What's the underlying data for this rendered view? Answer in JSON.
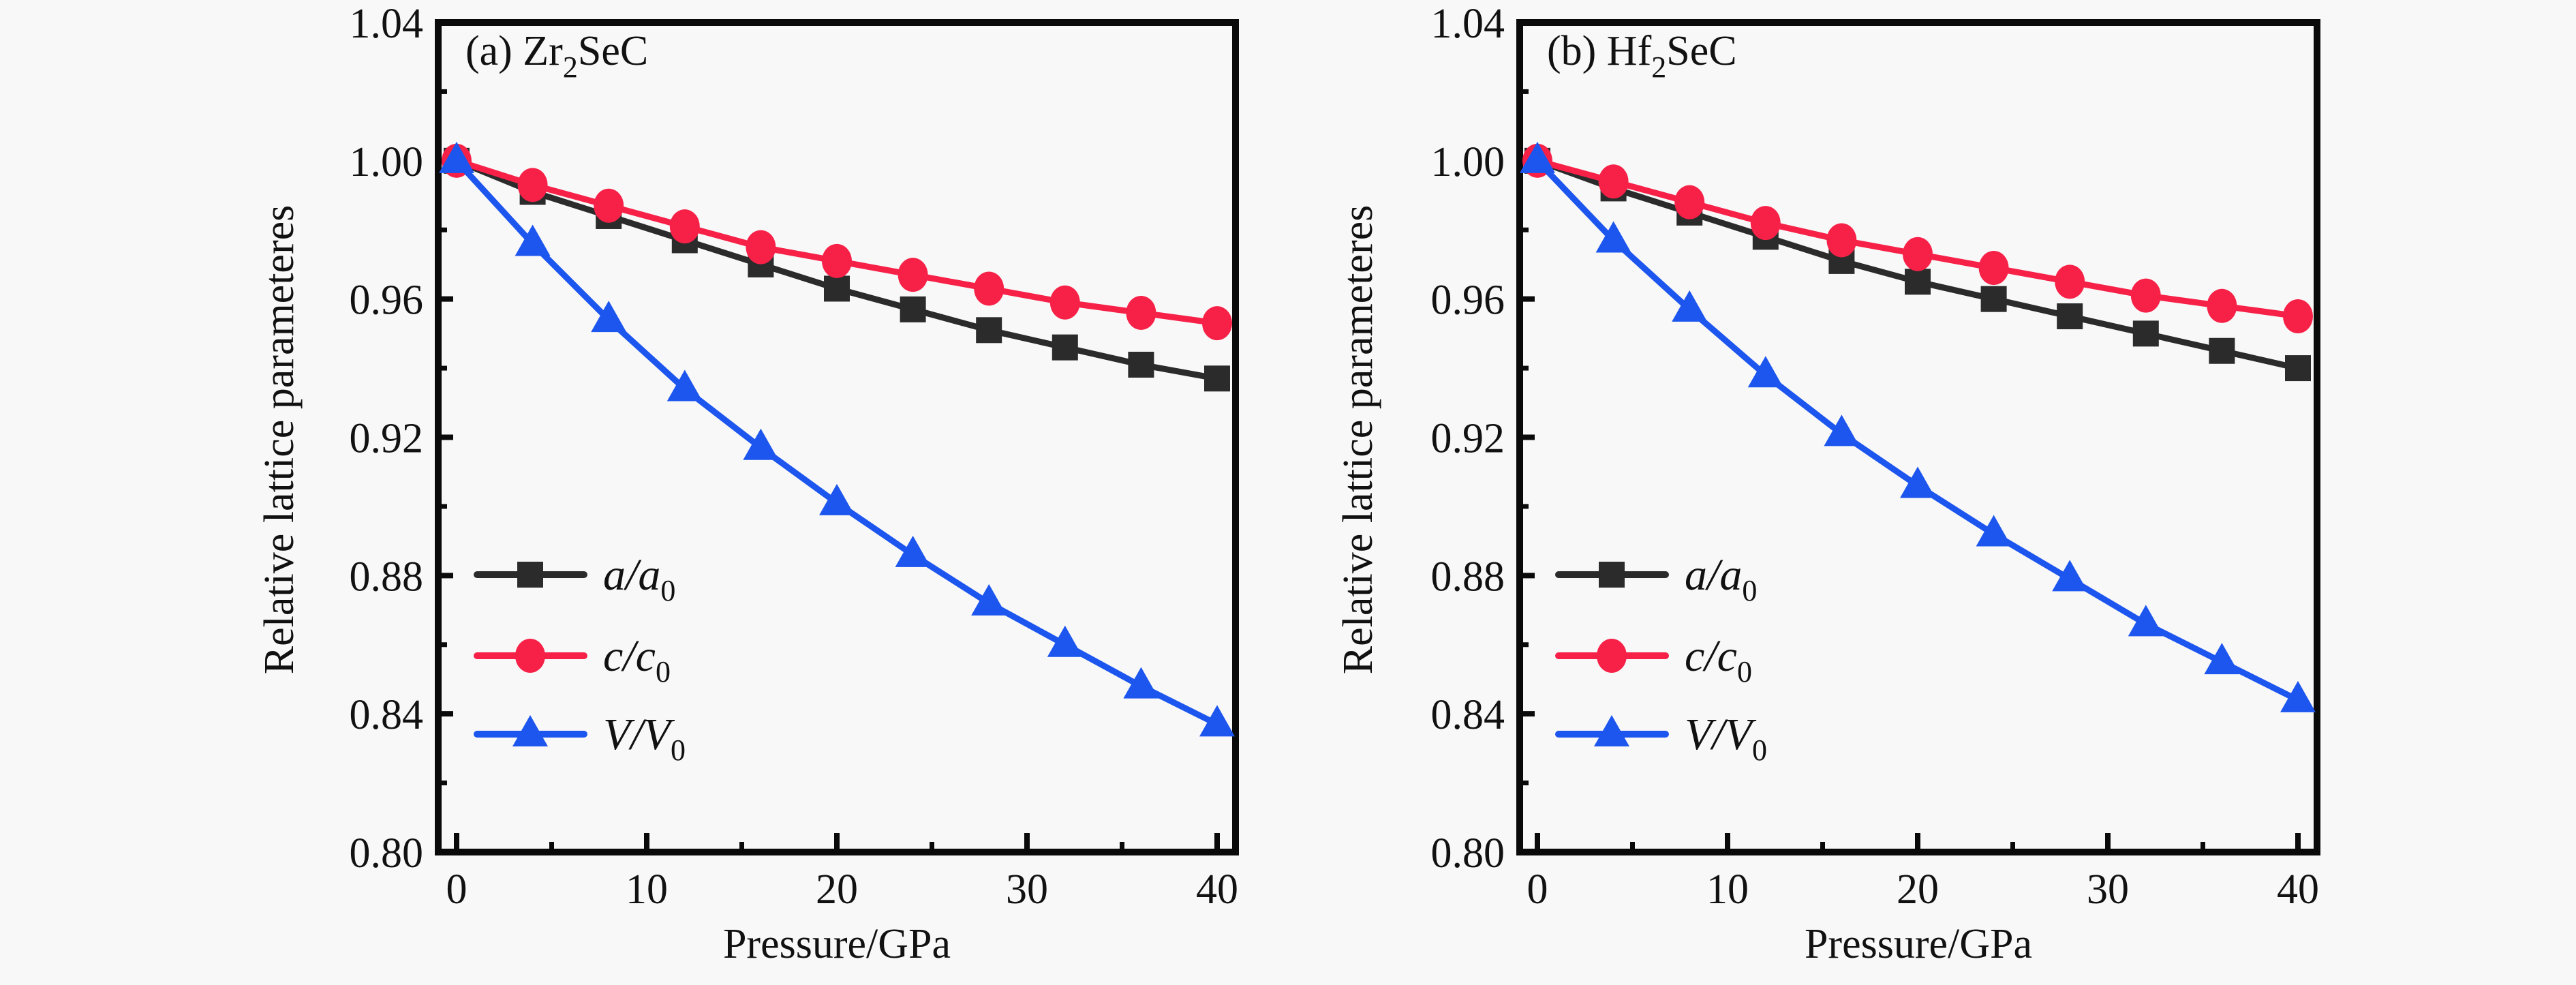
{
  "chart_data": [
    {
      "type": "line",
      "panel_label": "(a) Zr",
      "panel_label_sub": "2",
      "panel_label_tail": "SeC",
      "xlabel": "Pressure/GPa",
      "ylabel": "Relative lattice parameteres",
      "xlim": [
        -1,
        41
      ],
      "ylim": [
        0.8,
        1.04
      ],
      "xticks": [
        0,
        10,
        20,
        30,
        40
      ],
      "xtick_labels": [
        "0",
        "10",
        "20",
        "30",
        "40"
      ],
      "xminor_ticks": [
        5,
        15,
        25,
        35
      ],
      "yticks": [
        0.8,
        0.84,
        0.88,
        0.92,
        0.96,
        1.0,
        1.04
      ],
      "ytick_labels": [
        "0.80",
        "0.84",
        "0.88",
        "0.92",
        "0.96",
        "1.00",
        "1.04"
      ],
      "yminor_ticks": [
        0.82,
        0.86,
        0.9,
        0.94,
        0.98,
        1.02
      ],
      "grid": false,
      "legend_position": "lower-left",
      "x": [
        0,
        4,
        8,
        12,
        16,
        20,
        24,
        28,
        32,
        36,
        40
      ],
      "series": [
        {
          "name": "a/a0",
          "label_main": "a/a",
          "label_sub": "0",
          "marker": "square",
          "color": "#2b2b2b",
          "values": [
            1.0,
            0.991,
            0.984,
            0.977,
            0.97,
            0.963,
            0.957,
            0.951,
            0.946,
            0.941,
            0.937
          ]
        },
        {
          "name": "c/c0",
          "label_main": "c/c",
          "label_sub": "0",
          "marker": "circle",
          "color": "#f72148",
          "values": [
            1.0,
            0.993,
            0.987,
            0.981,
            0.975,
            0.971,
            0.967,
            0.963,
            0.959,
            0.956,
            0.953
          ]
        },
        {
          "name": "V/V0",
          "label_main": "V/V",
          "label_sub": "0",
          "marker": "triangle",
          "color": "#1d56ee",
          "values": [
            1.0,
            0.976,
            0.954,
            0.934,
            0.917,
            0.901,
            0.886,
            0.872,
            0.86,
            0.848,
            0.837
          ]
        }
      ]
    },
    {
      "type": "line",
      "panel_label": "(b) Hf",
      "panel_label_sub": "2",
      "panel_label_tail": "SeC",
      "xlabel": "Pressure/GPa",
      "ylabel": "Relative lattice parameteres",
      "xlim": [
        -1,
        41
      ],
      "ylim": [
        0.8,
        1.04
      ],
      "xticks": [
        0,
        10,
        20,
        30,
        40
      ],
      "xtick_labels": [
        "0",
        "10",
        "20",
        "30",
        "40"
      ],
      "xminor_ticks": [
        5,
        15,
        25,
        35
      ],
      "yticks": [
        0.8,
        0.84,
        0.88,
        0.92,
        0.96,
        1.0,
        1.04
      ],
      "ytick_labels": [
        "0.80",
        "0.84",
        "0.88",
        "0.92",
        "0.96",
        "1.00",
        "1.04"
      ],
      "yminor_ticks": [
        0.82,
        0.86,
        0.9,
        0.94,
        0.98,
        1.02
      ],
      "grid": false,
      "legend_position": "lower-left",
      "x": [
        0,
        4,
        8,
        12,
        16,
        20,
        24,
        28,
        32,
        36,
        40
      ],
      "series": [
        {
          "name": "a/a0",
          "label_main": "a/a",
          "label_sub": "0",
          "marker": "square",
          "color": "#2b2b2b",
          "values": [
            1.0,
            0.992,
            0.985,
            0.978,
            0.971,
            0.965,
            0.96,
            0.955,
            0.95,
            0.945,
            0.94
          ]
        },
        {
          "name": "c/c0",
          "label_main": "c/c",
          "label_sub": "0",
          "marker": "circle",
          "color": "#f72148",
          "values": [
            1.0,
            0.994,
            0.988,
            0.982,
            0.977,
            0.973,
            0.969,
            0.965,
            0.961,
            0.958,
            0.955
          ]
        },
        {
          "name": "V/V0",
          "label_main": "V/V",
          "label_sub": "0",
          "marker": "triangle",
          "color": "#1d56ee",
          "values": [
            1.0,
            0.977,
            0.957,
            0.938,
            0.921,
            0.906,
            0.892,
            0.879,
            0.866,
            0.855,
            0.844
          ]
        }
      ]
    }
  ]
}
